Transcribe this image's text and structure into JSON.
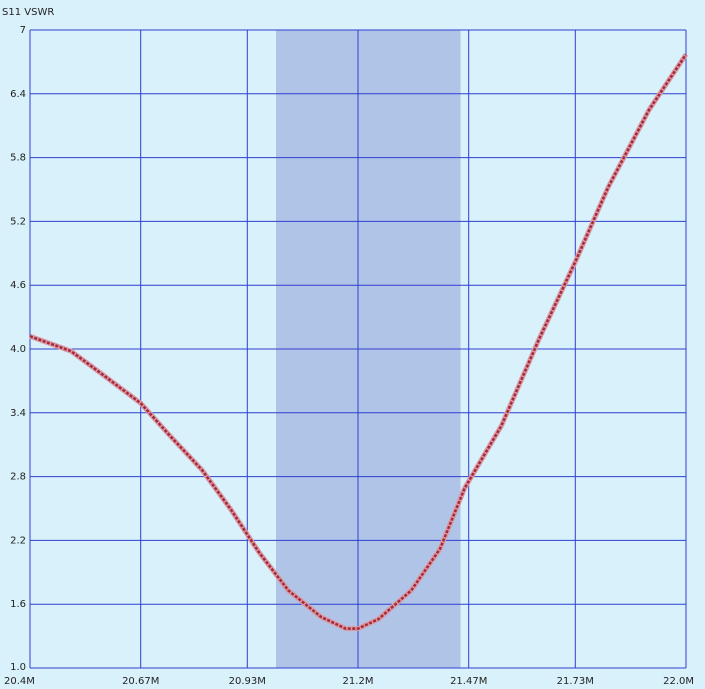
{
  "chart_data": {
    "type": "line",
    "title": "S11 VSWR",
    "x": [
      20.4,
      20.5,
      20.57,
      20.67,
      20.74,
      20.82,
      20.89,
      20.96,
      21.03,
      21.11,
      21.17,
      21.2,
      21.25,
      21.33,
      21.4,
      21.46,
      21.55,
      21.64,
      21.73,
      21.81,
      21.91,
      22.0
    ],
    "series": [
      {
        "name": "S11 VSWR",
        "color": "#a52a3a",
        "values": [
          4.12,
          3.98,
          3.78,
          3.49,
          3.19,
          2.86,
          2.49,
          2.08,
          1.73,
          1.48,
          1.37,
          1.37,
          1.46,
          1.73,
          2.12,
          2.69,
          3.28,
          4.08,
          4.82,
          5.52,
          6.25,
          6.77
        ]
      }
    ],
    "band": [
      21.0,
      21.45
    ],
    "band_color": "#b0c4e8",
    "xlim": [
      20.4,
      22.0
    ],
    "xticks": [
      {
        "value": 20.4,
        "label": "20.4M"
      },
      {
        "value": 20.67,
        "label": "20.67M"
      },
      {
        "value": 20.93,
        "label": "20.93M"
      },
      {
        "value": 21.2,
        "label": "21.2M"
      },
      {
        "value": 21.47,
        "label": "21.47M"
      },
      {
        "value": 21.73,
        "label": "21.73M"
      },
      {
        "value": 22.0,
        "label": "22.0M"
      }
    ],
    "ylim": [
      1,
      7
    ],
    "yticks": [
      {
        "value": 1,
        "label": "1.0"
      },
      1.6,
      2.2,
      2.8,
      3.4,
      {
        "value": 4,
        "label": "4.0"
      },
      4.6,
      5.2,
      5.8,
      6.4,
      7
    ],
    "grid": true,
    "grid_color": "#2f3fd0"
  }
}
